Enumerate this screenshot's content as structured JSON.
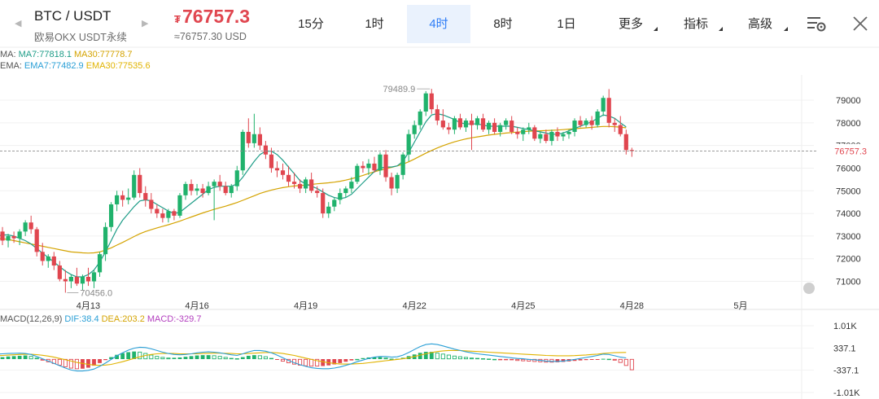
{
  "header": {
    "pair": "BTC / USDT",
    "subtitle": "欧易OKX USDT永续",
    "currency_symbol": "₮",
    "price": "76757.3",
    "price_approx": "≈76757.30 USD",
    "prev_arrow": "◀",
    "next_arrow": "▶"
  },
  "tabs": [
    {
      "label": "15分",
      "active": false
    },
    {
      "label": "1时",
      "active": false
    },
    {
      "label": "4时",
      "active": true
    },
    {
      "label": "8时",
      "active": false
    },
    {
      "label": "1日",
      "active": false
    },
    {
      "label": "更多",
      "active": false,
      "dropdown": true
    },
    {
      "label": "指标",
      "active": false,
      "dropdown": true
    },
    {
      "label": "高级",
      "active": false,
      "dropdown": true
    }
  ],
  "toolbar": {
    "settings_icon": "chart-settings-icon",
    "close_icon": "close-icon"
  },
  "legends": {
    "ma": {
      "prefix": "MA:",
      "ma7": "MA7:77818.1",
      "ma30": "MA30:77778.7"
    },
    "ema": {
      "prefix": "EMA:",
      "ema7": "EMA7:77482.9",
      "ema30": "EMA30:77535.6"
    },
    "macd": {
      "prefix": "MACD(12,26,9)",
      "dif": "DIF:38.4",
      "dea": "DEA:203.2",
      "macd": "MACD:-329.7"
    }
  },
  "colors": {
    "up": "#20b26c",
    "down": "#e0464f",
    "accent": "#2f7df6",
    "ma7": "#1f9d88",
    "ma30": "#d4a300",
    "ema7": "#2a9fd6",
    "ema30": "#e0b300",
    "macd_purple": "#b33fbf"
  },
  "chart_data": {
    "type": "candlestick",
    "interval": "4时",
    "yaxis": {
      "ticks": [
        "79000",
        "78000",
        "77000",
        "76000",
        "75000",
        "74000",
        "73000",
        "72000",
        "71000"
      ],
      "ylim": [
        70300,
        79900
      ]
    },
    "xaxis": {
      "ticks": [
        "4月13",
        "4月16",
        "4月19",
        "4月22",
        "4月25",
        "4月28",
        "5月"
      ]
    },
    "current_price_label": "76757.3",
    "high_annotation": "79489.9",
    "low_annotation": "70456.0",
    "candles_ohlc": [
      [
        72900,
        73300,
        72700,
        73200
      ],
      [
        73200,
        73400,
        72600,
        72800
      ],
      [
        72800,
        73100,
        72500,
        73000
      ],
      [
        73000,
        73200,
        72700,
        72900
      ],
      [
        72900,
        73300,
        72600,
        73200
      ],
      [
        73200,
        73700,
        73000,
        73600
      ],
      [
        73600,
        73900,
        73100,
        73300
      ],
      [
        73300,
        73400,
        72100,
        72300
      ],
      [
        72300,
        72700,
        71700,
        71900
      ],
      [
        71900,
        72200,
        71600,
        72100
      ],
      [
        72100,
        72300,
        71500,
        71700
      ],
      [
        71700,
        71900,
        71000,
        71100
      ],
      [
        71100,
        71500,
        70500,
        71000
      ],
      [
        71000,
        71300,
        70700,
        71200
      ],
      [
        71200,
        71600,
        70800,
        70900
      ],
      [
        70900,
        71300,
        70600,
        71200
      ],
      [
        71200,
        71600,
        70800,
        71000
      ],
      [
        71000,
        71500,
        70700,
        71400
      ],
      [
        71400,
        72300,
        71200,
        72200
      ],
      [
        72200,
        73600,
        71900,
        73400
      ],
      [
        73400,
        74500,
        73200,
        74400
      ],
      [
        74400,
        75000,
        74100,
        74800
      ],
      [
        74800,
        75000,
        74300,
        74600
      ],
      [
        74600,
        75100,
        74400,
        74700
      ],
      [
        74700,
        75900,
        74600,
        75700
      ],
      [
        75700,
        76000,
        74700,
        74900
      ],
      [
        74900,
        75200,
        74300,
        74600
      ],
      [
        74600,
        74900,
        74000,
        74200
      ],
      [
        74200,
        74400,
        73800,
        74000
      ],
      [
        74000,
        74200,
        73600,
        73800
      ],
      [
        73800,
        74200,
        73600,
        74100
      ],
      [
        74100,
        74200,
        73700,
        73900
      ],
      [
        73900,
        74900,
        73800,
        74800
      ],
      [
        74800,
        75400,
        74600,
        75300
      ],
      [
        75300,
        75500,
        74800,
        75000
      ],
      [
        75000,
        75300,
        74800,
        75100
      ],
      [
        75100,
        75300,
        74700,
        74900
      ],
      [
        74900,
        75400,
        74800,
        75200
      ],
      [
        75200,
        75500,
        73700,
        75400
      ],
      [
        75400,
        75700,
        75000,
        75200
      ],
      [
        75200,
        75400,
        74800,
        74900
      ],
      [
        74900,
        75300,
        74700,
        75200
      ],
      [
        75200,
        76100,
        75000,
        75900
      ],
      [
        75900,
        77700,
        75700,
        77600
      ],
      [
        77600,
        78200,
        76900,
        77100
      ],
      [
        77100,
        78400,
        76900,
        77500
      ],
      [
        77500,
        77800,
        76800,
        77000
      ],
      [
        77000,
        77200,
        76400,
        76600
      ],
      [
        76600,
        76900,
        75800,
        76000
      ],
      [
        76000,
        76300,
        75600,
        75900
      ],
      [
        75900,
        76200,
        75500,
        75700
      ],
      [
        75700,
        76100,
        75200,
        75400
      ],
      [
        75400,
        75800,
        75100,
        75300
      ],
      [
        75300,
        75500,
        74900,
        75100
      ],
      [
        75100,
        75600,
        74900,
        75500
      ],
      [
        75500,
        75800,
        74900,
        75000
      ],
      [
        75000,
        75200,
        74700,
        74900
      ],
      [
        74900,
        75100,
        73800,
        74000
      ],
      [
        74000,
        74500,
        73800,
        74300
      ],
      [
        74300,
        74700,
        74100,
        74600
      ],
      [
        74600,
        75100,
        74400,
        74900
      ],
      [
        74900,
        75200,
        74700,
        75100
      ],
      [
        75100,
        75600,
        74900,
        75400
      ],
      [
        75400,
        76200,
        75300,
        76100
      ],
      [
        76100,
        76300,
        75800,
        76000
      ],
      [
        76000,
        76400,
        75700,
        76200
      ],
      [
        76200,
        76500,
        75800,
        75900
      ],
      [
        75900,
        76700,
        75700,
        76600
      ],
      [
        76600,
        76800,
        75400,
        75600
      ],
      [
        75600,
        75800,
        74800,
        75100
      ],
      [
        75100,
        75800,
        74900,
        75700
      ],
      [
        75700,
        76700,
        75500,
        76600
      ],
      [
        76600,
        77700,
        76300,
        77500
      ],
      [
        77500,
        78100,
        77300,
        77900
      ],
      [
        77900,
        78600,
        77700,
        78500
      ],
      [
        78500,
        79400,
        78300,
        79300
      ],
      [
        79300,
        79500,
        78400,
        78600
      ],
      [
        78600,
        78800,
        77900,
        78100
      ],
      [
        78100,
        78600,
        77700,
        77800
      ],
      [
        77800,
        78000,
        77500,
        77700
      ],
      [
        77700,
        78300,
        77500,
        78200
      ],
      [
        78200,
        78400,
        77700,
        77800
      ],
      [
        77800,
        78200,
        77600,
        78100
      ],
      [
        78100,
        78400,
        76800,
        77900
      ],
      [
        77900,
        78300,
        77700,
        78200
      ],
      [
        78200,
        78400,
        77600,
        77700
      ],
      [
        77700,
        78100,
        77500,
        78000
      ],
      [
        78000,
        78200,
        77500,
        77600
      ],
      [
        77600,
        78000,
        77400,
        77900
      ],
      [
        77900,
        78200,
        77700,
        78100
      ],
      [
        78100,
        78300,
        77500,
        77600
      ],
      [
        77600,
        77800,
        77300,
        77500
      ],
      [
        77500,
        77800,
        77200,
        77700
      ],
      [
        77700,
        78000,
        77500,
        77800
      ],
      [
        77800,
        77900,
        77200,
        77300
      ],
      [
        77300,
        77600,
        77100,
        77500
      ],
      [
        77500,
        77700,
        77100,
        77200
      ],
      [
        77200,
        77700,
        77000,
        77600
      ],
      [
        77600,
        77800,
        77200,
        77400
      ],
      [
        77400,
        77600,
        77200,
        77500
      ],
      [
        77500,
        77700,
        77300,
        77600
      ],
      [
        77600,
        78200,
        77400,
        78100
      ],
      [
        78100,
        78300,
        77800,
        77900
      ],
      [
        77900,
        78200,
        77800,
        78100
      ],
      [
        78100,
        78300,
        77700,
        77900
      ],
      [
        77900,
        78600,
        77800,
        78500
      ],
      [
        78500,
        79200,
        78300,
        79100
      ],
      [
        79100,
        79490,
        77800,
        78000
      ],
      [
        78000,
        78200,
        77600,
        77900
      ],
      [
        77900,
        78300,
        77400,
        77500
      ],
      [
        77500,
        77700,
        76600,
        76800
      ],
      [
        76800,
        76900,
        76500,
        76757
      ]
    ],
    "ma7": [
      73000,
      73050,
      73050,
      73000,
      72900,
      72800,
      72650,
      72450,
      72250,
      72050,
      71850,
      71650,
      71450,
      71300,
      71200,
      71200,
      71300,
      71500,
      71850,
      72300,
      72800,
      73300,
      73700,
      74000,
      74300,
      74550,
      74600,
      74550,
      74400,
      74250,
      74100,
      74000,
      74050,
      74250,
      74450,
      74650,
      74850,
      75050,
      75150,
      75200,
      75200,
      75200,
      75300,
      75600,
      75950,
      76300,
      76600,
      76750,
      76750,
      76600,
      76350,
      76050,
      75750,
      75450,
      75300,
      75200,
      75100,
      74950,
      74800,
      74700,
      74650,
      74700,
      74850,
      75100,
      75350,
      75600,
      75850,
      76000,
      76050,
      76050,
      76100,
      76300,
      76700,
      77150,
      77600,
      78050,
      78350,
      78400,
      78350,
      78250,
      78150,
      78000,
      77950,
      77950,
      77950,
      77900,
      77850,
      77850,
      77850,
      77850,
      77850,
      77800,
      77750,
      77700,
      77650,
      77600,
      77550,
      77500,
      77500,
      77550,
      77650,
      77750,
      77850,
      77950,
      78050,
      78200,
      78350,
      78300,
      78200,
      78000,
      77818
    ],
    "ma30": [
      72900,
      72880,
      72850,
      72800,
      72750,
      72700,
      72650,
      72600,
      72550,
      72500,
      72450,
      72400,
      72350,
      72300,
      72280,
      72260,
      72250,
      72260,
      72300,
      72380,
      72480,
      72600,
      72720,
      72850,
      72980,
      73100,
      73200,
      73280,
      73360,
      73430,
      73500,
      73580,
      73660,
      73750,
      73840,
      73930,
      74020,
      74100,
      74180,
      74250,
      74320,
      74400,
      74480,
      74580,
      74680,
      74780,
      74880,
      74960,
      75030,
      75090,
      75140,
      75180,
      75210,
      75230,
      75250,
      75280,
      75310,
      75330,
      75350,
      75380,
      75420,
      75470,
      75530,
      75600,
      75680,
      75760,
      75840,
      75910,
      75970,
      76030,
      76100,
      76180,
      76280,
      76400,
      76530,
      76660,
      76780,
      76890,
      76990,
      77080,
      77160,
      77230,
      77290,
      77340,
      77380,
      77420,
      77460,
      77490,
      77520,
      77550,
      77570,
      77590,
      77610,
      77630,
      77640,
      77650,
      77660,
      77670,
      77680,
      77700,
      77720,
      77740,
      77760,
      77780,
      77800,
      77820,
      77840,
      77840,
      77830,
      77810,
      77779
    ],
    "macd_hist": [
      40,
      60,
      80,
      90,
      100,
      110,
      90,
      40,
      -40,
      -90,
      -140,
      -190,
      -240,
      -280,
      -300,
      -290,
      -260,
      -200,
      -120,
      -30,
      60,
      130,
      180,
      210,
      230,
      220,
      180,
      130,
      90,
      60,
      40,
      40,
      50,
      70,
      90,
      110,
      120,
      120,
      110,
      90,
      60,
      30,
      20,
      60,
      100,
      120,
      110,
      80,
      30,
      -20,
      -70,
      -120,
      -160,
      -190,
      -210,
      -220,
      -220,
      -210,
      -190,
      -160,
      -120,
      -80,
      -40,
      0,
      30,
      50,
      60,
      60,
      40,
      10,
      10,
      40,
      90,
      140,
      190,
      220,
      220,
      190,
      160,
      130,
      100,
      80,
      60,
      40,
      30,
      20,
      10,
      0,
      -10,
      -20,
      -30,
      -50,
      -60,
      -70,
      -80,
      -90,
      -100,
      -100,
      -95,
      -85,
      -70,
      -55,
      -40,
      -30,
      -20,
      -10,
      10,
      5,
      -40,
      -110,
      -200,
      -330
    ],
    "dif": [
      150,
      160,
      170,
      175,
      180,
      170,
      140,
      80,
      10,
      -60,
      -130,
      -200,
      -270,
      -330,
      -360,
      -360,
      -340,
      -300,
      -220,
      -120,
      -10,
      100,
      190,
      270,
      330,
      360,
      350,
      310,
      260,
      210,
      170,
      140,
      130,
      140,
      160,
      190,
      210,
      220,
      210,
      190,
      160,
      130,
      110,
      160,
      220,
      260,
      260,
      240,
      190,
      120,
      40,
      -40,
      -110,
      -170,
      -220,
      -260,
      -280,
      -290,
      -290,
      -270,
      -240,
      -190,
      -140,
      -80,
      -30,
      20,
      60,
      80,
      80,
      60,
      70,
      120,
      200,
      290,
      380,
      440,
      460,
      440,
      400,
      350,
      300,
      260,
      220,
      190,
      160,
      140,
      120,
      100,
      80,
      60,
      40,
      20,
      10,
      -10,
      -20,
      -40,
      -60,
      -70,
      -70,
      -60,
      -40,
      -10,
      20,
      50,
      80,
      110,
      150,
      140,
      100,
      60,
      38
    ],
    "dea": [
      100,
      110,
      120,
      130,
      140,
      145,
      145,
      135,
      115,
      90,
      60,
      20,
      -20,
      -60,
      -100,
      -130,
      -160,
      -180,
      -190,
      -180,
      -160,
      -120,
      -80,
      -30,
      20,
      70,
      110,
      140,
      160,
      170,
      170,
      170,
      160,
      160,
      160,
      160,
      170,
      175,
      180,
      180,
      175,
      170,
      160,
      160,
      170,
      180,
      190,
      200,
      200,
      190,
      170,
      140,
      110,
      70,
      30,
      -10,
      -50,
      -80,
      -110,
      -130,
      -150,
      -150,
      -150,
      -140,
      -130,
      -110,
      -90,
      -70,
      -50,
      -30,
      -10,
      10,
      40,
      80,
      120,
      160,
      200,
      230,
      250,
      260,
      260,
      260,
      250,
      240,
      230,
      220,
      210,
      200,
      190,
      180,
      170,
      160,
      150,
      140,
      130,
      120,
      110,
      105,
      100,
      100,
      100,
      105,
      115,
      125,
      140,
      150,
      170,
      185,
      195,
      200,
      203
    ]
  }
}
